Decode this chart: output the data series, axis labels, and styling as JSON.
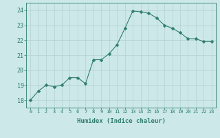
{
  "x": [
    0,
    1,
    2,
    3,
    4,
    5,
    6,
    7,
    8,
    9,
    10,
    11,
    12,
    13,
    14,
    15,
    16,
    17,
    18,
    19,
    20,
    21,
    22,
    23
  ],
  "y": [
    18.0,
    18.6,
    19.0,
    18.9,
    19.0,
    19.5,
    19.5,
    19.1,
    20.7,
    20.7,
    21.1,
    21.7,
    22.8,
    23.95,
    23.9,
    23.8,
    23.5,
    23.0,
    22.8,
    22.5,
    22.1,
    22.1,
    21.9,
    21.9
  ],
  "line_color": "#2e7d6e",
  "marker": "D",
  "marker_size": 2.5,
  "bg_color": "#cce8e8",
  "grid_color": "#b8d4d4",
  "axis_label_color": "#2e7d6e",
  "tick_color": "#2e7d6e",
  "xlabel": "Humidex (Indice chaleur)",
  "ylim": [
    17.5,
    24.5
  ],
  "xlim": [
    -0.5,
    23.5
  ],
  "yticks": [
    18,
    19,
    20,
    21,
    22,
    23,
    24
  ],
  "xticks": [
    0,
    1,
    2,
    3,
    4,
    5,
    6,
    7,
    8,
    9,
    10,
    11,
    12,
    13,
    14,
    15,
    16,
    17,
    18,
    19,
    20,
    21,
    22,
    23
  ]
}
